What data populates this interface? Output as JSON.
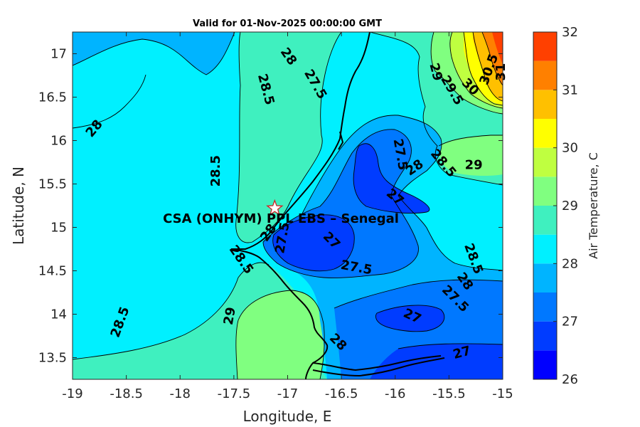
{
  "title": "Valid for 01-Nov-2025 00:00:00 GMT",
  "site_label": "CSA (ONHYM) PPL EBS  – Senegal",
  "x_axis": {
    "label": "Longitude, E",
    "range": [
      -19,
      -15
    ],
    "ticks": [
      "-19",
      "-18.5",
      "-18",
      "-17.5",
      "-17",
      "-16.5",
      "-16",
      "-15.5",
      "-15"
    ]
  },
  "y_axis": {
    "label": "Latitude, N",
    "range": [
      13.25,
      17.25
    ],
    "ticks": [
      "13.5",
      "14",
      "14.5",
      "15",
      "15.5",
      "16",
      "16.5",
      "17"
    ]
  },
  "colorbar": {
    "label": "Air Temperature, C",
    "range": [
      26,
      32
    ],
    "step": 0.5,
    "ticks": [
      "26",
      "27",
      "28",
      "29",
      "30",
      "31",
      "32"
    ],
    "colors": [
      "#0000ff",
      "#003cff",
      "#0078ff",
      "#00b4ff",
      "#00f0ff",
      "#3ff0bf",
      "#80ff80",
      "#bfff40",
      "#ffff00",
      "#ffc000",
      "#ff8000",
      "#ff4000",
      "#ff0000"
    ]
  },
  "site_marker": {
    "lon": -17.12,
    "lat": 15.22,
    "symbol": "star"
  },
  "contour_labels": [
    {
      "text": "28",
      "lon": -16.99,
      "lat": 16.97,
      "rot": 55
    },
    {
      "text": "27.5",
      "lon": -16.74,
      "lat": 16.65,
      "rot": 60
    },
    {
      "text": "28.5",
      "lon": -17.2,
      "lat": 16.59,
      "rot": 75
    },
    {
      "text": "28",
      "lon": -18.8,
      "lat": 16.14,
      "rot": -50
    },
    {
      "text": "28.5",
      "lon": -17.67,
      "lat": 15.65,
      "rot": -90
    },
    {
      "text": "29",
      "lon": -15.62,
      "lat": 16.79,
      "rot": 75
    },
    {
      "text": "29.5",
      "lon": -15.47,
      "lat": 16.58,
      "rot": 60
    },
    {
      "text": "30",
      "lon": -15.3,
      "lat": 16.62,
      "rot": 45
    },
    {
      "text": "30.5",
      "lon": -15.13,
      "lat": 16.82,
      "rot": -70
    },
    {
      "text": "31",
      "lon": -15.02,
      "lat": 16.79,
      "rot": -90
    },
    {
      "text": "27.5",
      "lon": -15.95,
      "lat": 15.84,
      "rot": 80
    },
    {
      "text": "28",
      "lon": -15.82,
      "lat": 15.69,
      "rot": -35
    },
    {
      "text": "28.5",
      "lon": -15.55,
      "lat": 15.74,
      "rot": 50
    },
    {
      "text": "29",
      "lon": -15.27,
      "lat": 15.72,
      "rot": 0
    },
    {
      "text": "27",
      "lon": -16.0,
      "lat": 15.35,
      "rot": 40
    },
    {
      "text": "28",
      "lon": -17.18,
      "lat": 14.94,
      "rot": -55
    },
    {
      "text": "27.5",
      "lon": -17.05,
      "lat": 14.88,
      "rot": -80
    },
    {
      "text": "28.5",
      "lon": -17.43,
      "lat": 14.63,
      "rot": 55
    },
    {
      "text": "27",
      "lon": -16.59,
      "lat": 14.85,
      "rot": 45
    },
    {
      "text": "27.5",
      "lon": -16.36,
      "lat": 14.54,
      "rot": 10
    },
    {
      "text": "28.5",
      "lon": -15.27,
      "lat": 14.64,
      "rot": 70
    },
    {
      "text": "28",
      "lon": -15.35,
      "lat": 14.38,
      "rot": 55
    },
    {
      "text": "27.5",
      "lon": -15.44,
      "lat": 14.18,
      "rot": 45
    },
    {
      "text": "27",
      "lon": -15.84,
      "lat": 13.98,
      "rot": 25
    },
    {
      "text": "28.5",
      "lon": -18.56,
      "lat": 13.91,
      "rot": -70
    },
    {
      "text": "29",
      "lon": -17.54,
      "lat": 13.98,
      "rot": -80
    },
    {
      "text": "28",
      "lon": -16.53,
      "lat": 13.68,
      "rot": 45
    },
    {
      "text": "27",
      "lon": -15.38,
      "lat": 13.56,
      "rot": -15
    }
  ]
}
